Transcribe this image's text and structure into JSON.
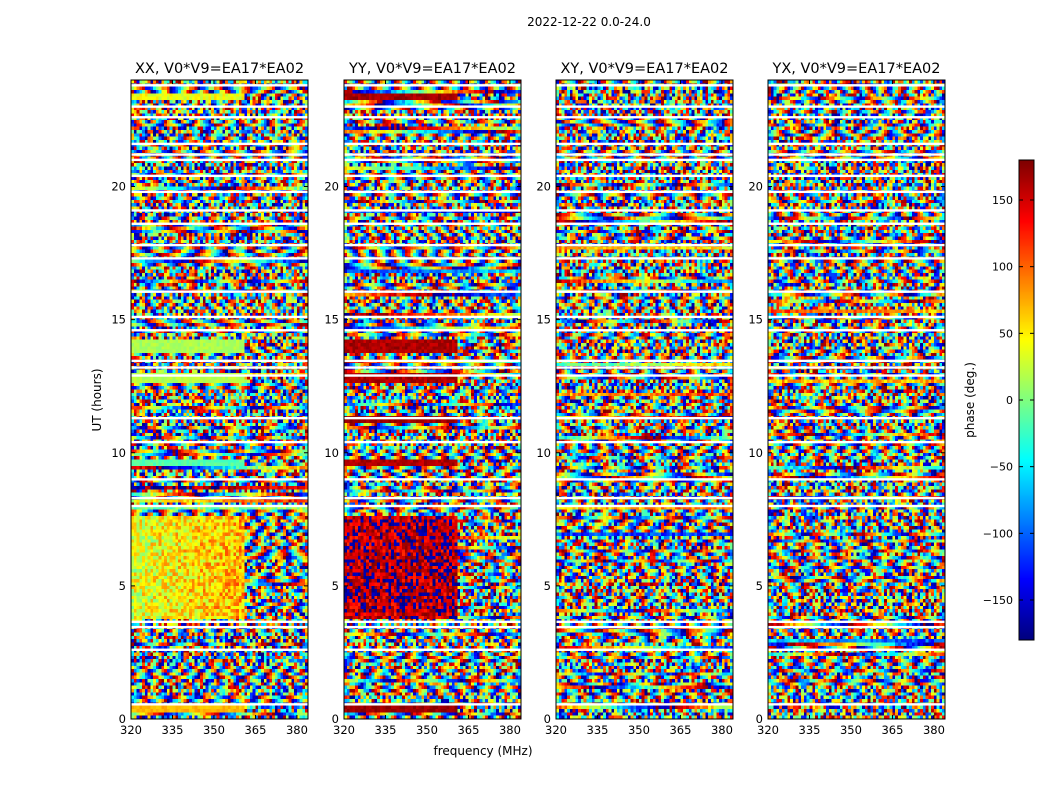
{
  "chart_data": {
    "type": "heatmap",
    "suptitle": "2022-12-22 0.0-24.0",
    "xlabel": "frequency (MHz)",
    "ylabel": "UT (hours)",
    "xlim": [
      320,
      384
    ],
    "ylim": [
      0,
      24
    ],
    "xticks": [
      320,
      335,
      350,
      365,
      380
    ],
    "yticks": [
      0,
      5,
      10,
      15,
      20
    ],
    "colorbar": {
      "label": "phase (deg.)",
      "range": [
        -180,
        180
      ],
      "ticks": [
        150,
        100,
        50,
        0,
        -50,
        -100,
        -150
      ],
      "tick_labels": [
        "150",
        "100",
        "50",
        "0",
        "−50",
        "−100",
        "−150"
      ],
      "colormap": "jet"
    },
    "panels": [
      {
        "title": "XX, V0*V9=EA17*EA02",
        "pol": "XX",
        "pattern": {
          "break_freq": 361,
          "coherent_blocks": [
            {
              "ut": [
                3.8,
                7.6
              ],
              "lo": -10,
              "hi": 75,
              "drift": 0.25
            },
            {
              "ut": [
                9.5,
                9.8
              ],
              "lo": -25,
              "hi": -5,
              "drift": 0
            },
            {
              "ut": [
                12.6,
                13.0
              ],
              "lo": 10,
              "hi": 30,
              "drift": 0
            },
            {
              "ut": [
                13.8,
                14.3
              ],
              "lo": 5,
              "hi": 25,
              "drift": 0
            },
            {
              "ut": [
                0.3,
                0.5
              ],
              "lo": 60,
              "hi": 80,
              "drift": 0
            },
            {
              "ut": [
                23.2,
                23.5
              ],
              "lo": 20,
              "hi": 60,
              "drift": 0
            }
          ]
        }
      },
      {
        "title": "YY, V0*V9=EA17*EA02",
        "pol": "YY",
        "pattern": {
          "break_freq": 361,
          "coherent_blocks": [
            {
              "ut": [
                3.8,
                7.6
              ],
              "lo": 120,
              "hi": 205,
              "drift": 0
            },
            {
              "ut": [
                9.5,
                9.8
              ],
              "lo": 150,
              "hi": 175,
              "drift": 0
            },
            {
              "ut": [
                11.1,
                11.4
              ],
              "lo": 155,
              "hi": 180,
              "drift": 0
            },
            {
              "ut": [
                12.6,
                13.0
              ],
              "lo": 150,
              "hi": 178,
              "drift": 0
            },
            {
              "ut": [
                13.8,
                14.3
              ],
              "lo": 150,
              "hi": 178,
              "drift": 0
            },
            {
              "ut": [
                0.3,
                0.5
              ],
              "lo": 160,
              "hi": 180,
              "drift": 0
            },
            {
              "ut": [
                23.3,
                23.5
              ],
              "lo": 155,
              "hi": 180,
              "drift": 0
            }
          ]
        }
      },
      {
        "title": "XY, V0*V9=EA17*EA02",
        "pol": "XY",
        "pattern": {
          "break_freq": 361,
          "coherent_blocks": []
        }
      },
      {
        "title": "YX, V0*V9=EA17*EA02",
        "pol": "YX",
        "pattern": {
          "break_freq": 361,
          "coherent_blocks": []
        }
      }
    ],
    "flagged_ut_rows": [
      0.55,
      2.6,
      3.45,
      3.65,
      8.0,
      8.3,
      9.0,
      10.4,
      11.3,
      12.9,
      13.2,
      13.45,
      14.6,
      15.1,
      16.05,
      17.3,
      17.8,
      18.6,
      19.1,
      19.8,
      20.4,
      21.0,
      21.2,
      21.6,
      22.6,
      23.0,
      23.8
    ]
  }
}
